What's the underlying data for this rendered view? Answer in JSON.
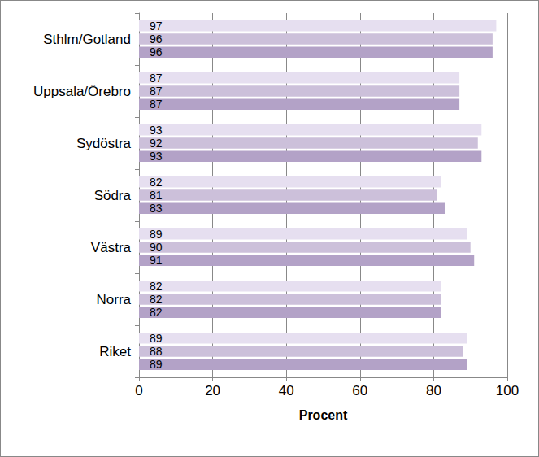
{
  "chart_data": {
    "type": "bar",
    "orientation": "horizontal",
    "x_label": "Procent",
    "categories": [
      "Sthlm/Gotland",
      "Uppsala/Örebro",
      "Sydöstra",
      "Södra",
      "Västra",
      "Norra",
      "Riket"
    ],
    "series": [
      {
        "color": "#e6dff0",
        "values": [
          97,
          87,
          93,
          82,
          89,
          82,
          89
        ]
      },
      {
        "color": "#ccc0da",
        "values": [
          96,
          87,
          92,
          81,
          90,
          82,
          88
        ]
      },
      {
        "color": "#b3a2c7",
        "values": [
          96,
          87,
          93,
          83,
          91,
          82,
          89
        ]
      }
    ],
    "xlim": [
      0,
      100
    ],
    "xticks": [
      0,
      20,
      40,
      60,
      80,
      100
    ],
    "grid": true,
    "data_labels": true
  }
}
